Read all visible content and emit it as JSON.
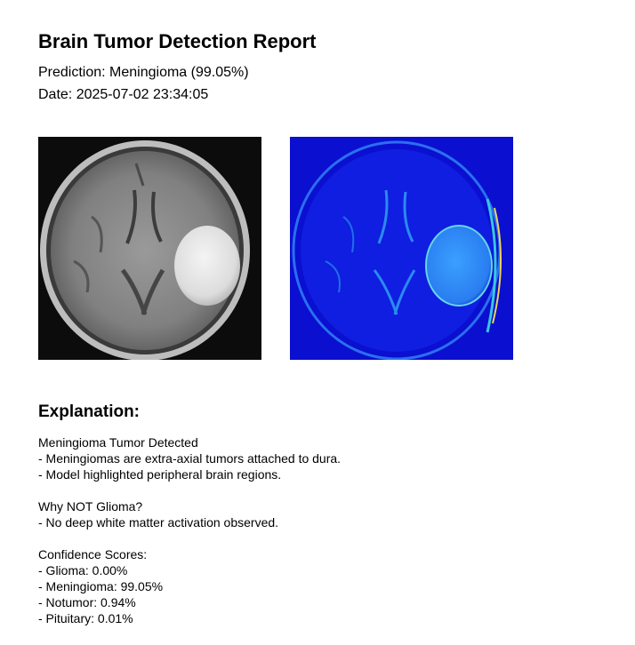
{
  "report": {
    "title": "Brain Tumor Detection Report",
    "prediction": "Prediction: Meningioma (99.05%)",
    "date": "Date: 2025-07-02 23:34:05"
  },
  "images": {
    "mri_icon": "mri-scan-image",
    "heatmap_icon": "heatmap-image",
    "heatmap_color": "#0a0fd0"
  },
  "explanation": {
    "heading": "Explanation:",
    "detected_title": "Meningioma Tumor Detected",
    "detected_lines": [
      "- Meningiomas are extra-axial tumors attached to dura.",
      "- Model highlighted peripheral brain regions."
    ],
    "why_not_title": "Why NOT Glioma?",
    "why_not_lines": [
      "- No deep white matter activation observed."
    ],
    "confidence_title": "Confidence Scores:",
    "confidence_lines": [
      "- Glioma: 0.00%",
      "- Meningioma: 99.05%",
      "- Notumor: 0.94%",
      "- Pituitary: 0.01%"
    ]
  }
}
